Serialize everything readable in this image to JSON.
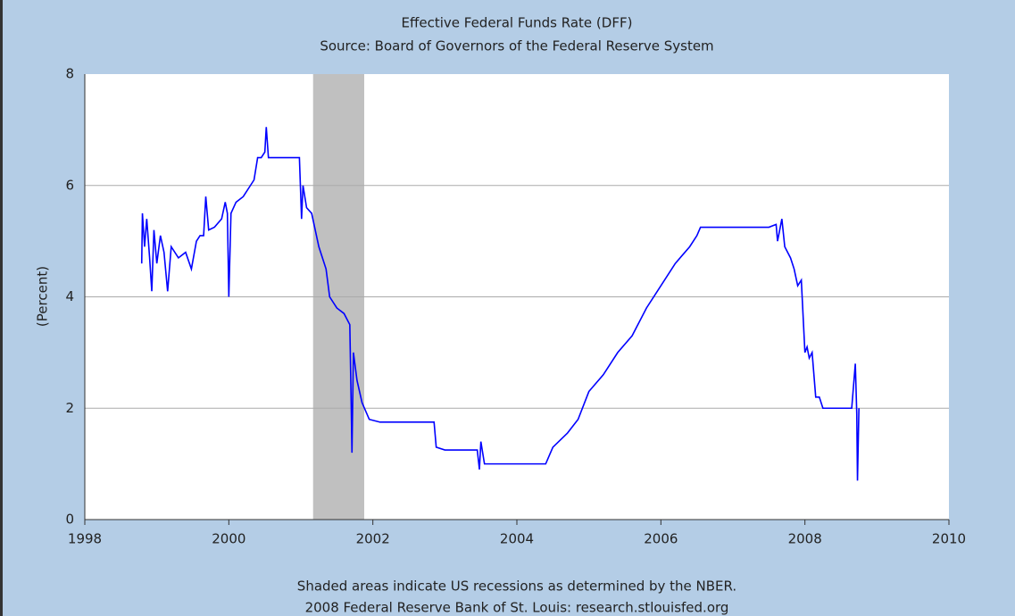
{
  "chart_data": {
    "type": "line",
    "title": "Effective Federal Funds Rate (DFF)",
    "subtitle": "Source: Board of Governors of the Federal Reserve System",
    "y_label": "(Percent)",
    "notes": [
      "Shaded areas indicate US recessions as determined by the NBER.",
      "2008 Federal Reserve Bank of St. Louis: research.stlouisfed.org"
    ],
    "color": "#0000ff",
    "shaded_ranges": [
      [
        2001.17,
        2001.88
      ]
    ],
    "shade_color": "#c0c0c0",
    "xlim": [
      1998,
      2010
    ],
    "xticks": [
      1998,
      2000,
      2002,
      2004,
      2006,
      2008,
      2010
    ],
    "ylim": [
      0,
      8
    ],
    "yticks": [
      0,
      2,
      4,
      6,
      8
    ],
    "grid": true,
    "x": [
      1998.79,
      1998.8,
      1998.83,
      1998.86,
      1998.9,
      1998.93,
      1998.96,
      1999.0,
      1999.05,
      1999.1,
      1999.15,
      1999.2,
      1999.3,
      1999.4,
      1999.48,
      1999.55,
      1999.6,
      1999.65,
      1999.68,
      1999.72,
      1999.8,
      1999.9,
      1999.95,
      1999.98,
      2000.0,
      2000.03,
      2000.1,
      2000.2,
      2000.3,
      2000.35,
      2000.4,
      2000.45,
      2000.5,
      2000.52,
      2000.55,
      2000.7,
      2000.9,
      2000.98,
      2001.01,
      2001.03,
      2001.08,
      2001.15,
      2001.25,
      2001.35,
      2001.4,
      2001.5,
      2001.6,
      2001.68,
      2001.7,
      2001.71,
      2001.73,
      2001.78,
      2001.85,
      2001.95,
      2002.1,
      2002.5,
      2002.85,
      2002.88,
      2003.0,
      2003.3,
      2003.45,
      2003.48,
      2003.5,
      2003.55,
      2003.8,
      2004.0,
      2004.4,
      2004.5,
      2004.7,
      2004.85,
      2005.0,
      2005.2,
      2005.4,
      2005.6,
      2005.8,
      2006.0,
      2006.2,
      2006.4,
      2006.5,
      2006.55,
      2007.0,
      2007.5,
      2007.6,
      2007.62,
      2007.68,
      2007.72,
      2007.8,
      2007.85,
      2007.9,
      2007.95,
      2008.0,
      2008.03,
      2008.06,
      2008.1,
      2008.15,
      2008.2,
      2008.25,
      2008.4,
      2008.55,
      2008.65,
      2008.7,
      2008.72,
      2008.73,
      2008.75
    ],
    "values": [
      4.6,
      5.5,
      4.9,
      5.4,
      4.7,
      4.1,
      5.2,
      4.6,
      5.1,
      4.8,
      4.1,
      4.9,
      4.7,
      4.8,
      4.5,
      5.0,
      5.1,
      5.1,
      5.8,
      5.2,
      5.25,
      5.4,
      5.7,
      5.5,
      4.0,
      5.5,
      5.7,
      5.8,
      6.0,
      6.1,
      6.5,
      6.5,
      6.6,
      7.05,
      6.5,
      6.5,
      6.5,
      6.5,
      5.4,
      6.0,
      5.6,
      5.5,
      4.9,
      4.5,
      4.0,
      3.8,
      3.7,
      3.5,
      2.0,
      1.2,
      3.0,
      2.5,
      2.1,
      1.8,
      1.75,
      1.75,
      1.75,
      1.3,
      1.25,
      1.25,
      1.25,
      0.9,
      1.4,
      1.0,
      1.0,
      1.0,
      1.0,
      1.3,
      1.55,
      1.8,
      2.3,
      2.6,
      3.0,
      3.3,
      3.8,
      4.2,
      4.6,
      4.9,
      5.1,
      5.25,
      5.25,
      5.25,
      5.3,
      5.0,
      5.4,
      4.9,
      4.7,
      4.5,
      4.2,
      4.3,
      3.0,
      3.1,
      2.9,
      3.0,
      2.2,
      2.2,
      2.0,
      2.0,
      2.0,
      2.0,
      2.8,
      1.9,
      0.7,
      2.0
    ]
  }
}
